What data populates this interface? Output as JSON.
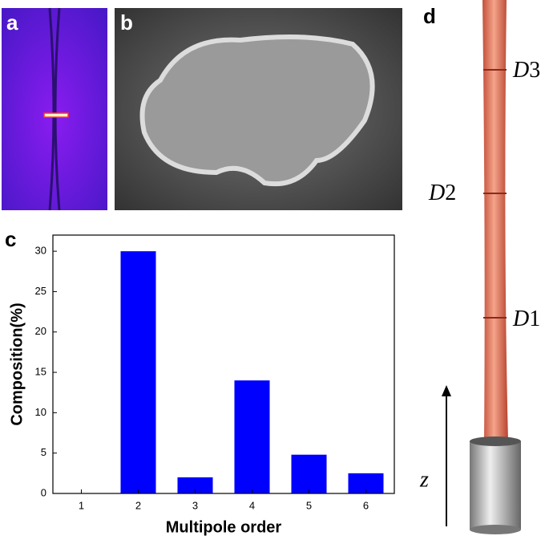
{
  "panels": {
    "a": "a",
    "b": "b",
    "c": "c",
    "d": "d"
  },
  "chart_data": {
    "type": "bar",
    "categories": [
      "1",
      "2",
      "3",
      "4",
      "5",
      "6"
    ],
    "values": [
      0,
      30,
      2,
      14,
      4.8,
      2.5
    ],
    "color": "#0000ff",
    "ylim": [
      0,
      32
    ],
    "yticks": [
      0,
      5,
      10,
      15,
      20,
      25,
      30
    ],
    "xlabel": "Multipole order",
    "ylabel": "Composition(%)"
  },
  "fiber": {
    "labels": [
      {
        "letter": "D",
        "index": "3"
      },
      {
        "letter": "D",
        "index": "2"
      },
      {
        "letter": "D",
        "index": "1"
      }
    ],
    "axis": "z"
  }
}
